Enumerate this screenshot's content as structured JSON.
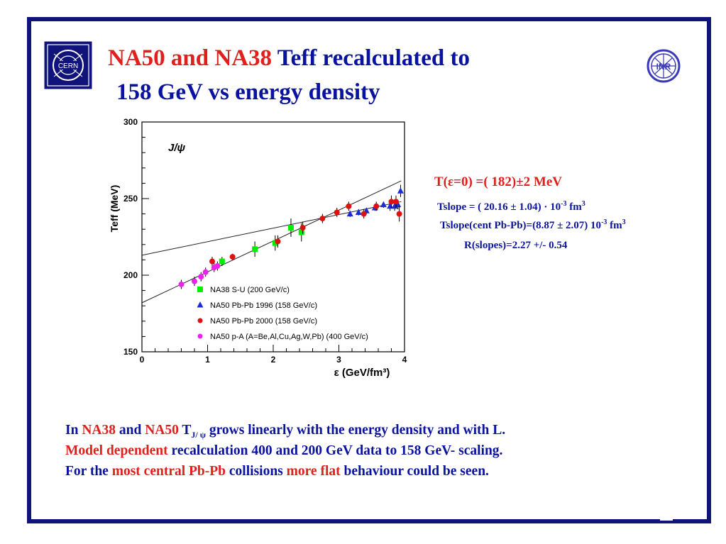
{
  "slide": {
    "title_red": "NA50 and NA38",
    "title_rest": " Teff recalculated to",
    "title_line2": "158 GeV vs energy density",
    "cern_logo_text": "CERN",
    "inr_logo_text": "INR"
  },
  "formulas": {
    "t0": "T(ε=0) =( 182)±2  MeV",
    "tslope_base": "Tslope = ( 20.16 ± 1.04) · 10",
    "tslope_exp": "-3",
    "tslope_unit": " fm",
    "tslope_unit_exp": "3",
    "tslope_cent_base": "Tslope(cent Pb-Pb)=(8.87  ± 2.07) 10",
    "tslope_cent_exp": "-3",
    "tslope_cent_unit": " fm",
    "tslope_cent_unit_exp": "3",
    "rslopes": "R(slopes)=2.27   +/-   0.54"
  },
  "bottom_text": {
    "l1_a": "In ",
    "l1_na38": "NA38",
    "l1_b": " and ",
    "l1_na50": "NA50",
    "l1_c": "   T",
    "l1_sub": "J/ ψ",
    "l1_d": " grows  linearly with the energy density and with L.",
    "l2_red": "Model dependent",
    "l2_rest": " recalculation 400 and 200 GeV data to 158 GeV- scaling.",
    "l3_a": "For the ",
    "l3_red1": "most central Pb-Pb",
    "l3_b": " collisions  ",
    "l3_red2": "more flat",
    "l3_c": " behaviour could be seen."
  },
  "colors": {
    "blue_text": "#0a12a0",
    "red_text": "#e0201c",
    "frame": "#10137a",
    "na38": "#00ee00",
    "na50_1996": "#1a2bd8",
    "na50_2000": "#e01010",
    "pA": "#ee22ee"
  },
  "chart_data": {
    "type": "scatter",
    "title": "J/ψ",
    "xlabel": "ε (GeV/fm³)",
    "ylabel": "Teff  (MeV)",
    "xlim": [
      0,
      4
    ],
    "ylim": [
      150,
      300
    ],
    "xticks": [
      "0",
      "1",
      "2",
      "3",
      "4"
    ],
    "yticks": [
      "150",
      "200",
      "250",
      "300"
    ],
    "legend_position": "bottom-right",
    "series": [
      {
        "name": "NA38 S-U (200 GeV/c)",
        "marker": "square",
        "color": "#00ee00",
        "points": [
          [
            1.22,
            209,
            3
          ],
          [
            1.72,
            217,
            5
          ],
          [
            2.03,
            221,
            5
          ],
          [
            2.27,
            231,
            6
          ],
          [
            2.43,
            228,
            6
          ]
        ]
      },
      {
        "name": "NA50 Pb-Pb 1996 (158 GeV/c)",
        "marker": "triangle",
        "color": "#1a2bd8",
        "points": [
          [
            3.17,
            240,
            2
          ],
          [
            3.3,
            241,
            2
          ],
          [
            3.42,
            242,
            2
          ],
          [
            3.55,
            244,
            2
          ],
          [
            3.68,
            246,
            2
          ],
          [
            3.78,
            245,
            3
          ],
          [
            3.85,
            245,
            3
          ],
          [
            3.9,
            246,
            3
          ],
          [
            3.94,
            255,
            4
          ]
        ]
      },
      {
        "name": "NA50 Pb-Pb 2000 (158 GeV/c)",
        "marker": "circle",
        "color": "#e01010",
        "points": [
          [
            1.07,
            209,
            3
          ],
          [
            1.38,
            212,
            2
          ],
          [
            2.07,
            222,
            4
          ],
          [
            2.45,
            231,
            4
          ],
          [
            2.75,
            237,
            3
          ],
          [
            2.97,
            241,
            3
          ],
          [
            3.15,
            245,
            3
          ],
          [
            3.38,
            240,
            3
          ],
          [
            3.57,
            245,
            3
          ],
          [
            3.8,
            248,
            4
          ],
          [
            3.87,
            248,
            4
          ],
          [
            3.92,
            240,
            5
          ]
        ]
      },
      {
        "name": "NA50  p-A (A=Be,Al,Cu,Ag,W,Pb) (400 GeV/c)",
        "marker": "circle",
        "color": "#ee22ee",
        "points": [
          [
            0.6,
            194,
            3
          ],
          [
            0.8,
            196,
            3
          ],
          [
            0.9,
            199,
            3
          ],
          [
            0.97,
            202,
            3
          ],
          [
            1.1,
            205,
            3
          ],
          [
            1.15,
            206,
            3
          ]
        ]
      }
    ],
    "fit_lines": [
      {
        "x": [
          0,
          3.95
        ],
        "y": [
          182,
          261.6
        ]
      },
      {
        "x": [
          0,
          3.95
        ],
        "y": [
          213,
          248.0
        ]
      }
    ]
  }
}
